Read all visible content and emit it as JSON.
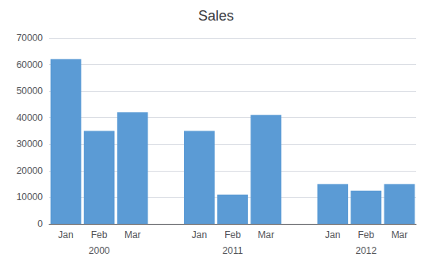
{
  "chart_data": {
    "type": "bar",
    "title": "Sales",
    "categories": [
      "Jan",
      "Feb",
      "Mar",
      null,
      "Jan",
      "Feb",
      "Mar",
      null,
      "Jan",
      "Feb",
      "Mar"
    ],
    "values": [
      62000,
      35000,
      42000,
      null,
      35000,
      11000,
      41000,
      null,
      15000,
      12500,
      15000
    ],
    "annotations": [
      "2000",
      "2011",
      "2012"
    ],
    "color": "#5B9BD5",
    "ylim": [
      0,
      70000
    ],
    "yticks": [
      0,
      10000,
      20000,
      30000,
      40000,
      50000,
      60000,
      70000
    ],
    "grid": true
  }
}
